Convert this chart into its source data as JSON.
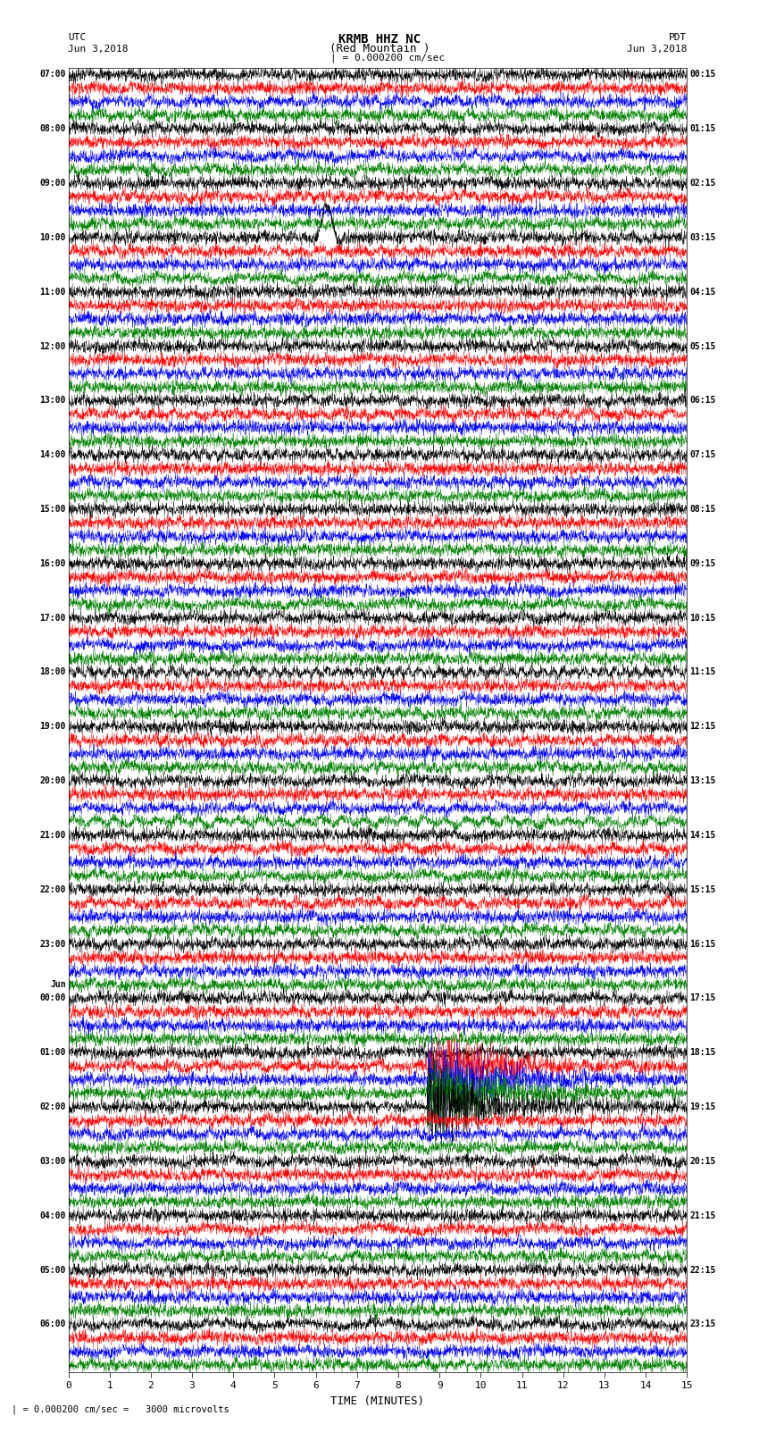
{
  "title_line1": "KRMB HHZ NC",
  "title_line2": "(Red Mountain )",
  "scale_label": "| = 0.000200 cm/sec",
  "bottom_annotation": "| = 0.000200 cm/sec =   3000 microvolts",
  "left_header1": "UTC",
  "left_header2": "Jun 3,2018",
  "right_header1": "PDT",
  "right_header2": "Jun 3,2018",
  "xlabel": "TIME (MINUTES)",
  "x_ticks": [
    0,
    1,
    2,
    3,
    4,
    5,
    6,
    7,
    8,
    9,
    10,
    11,
    12,
    13,
    14,
    15
  ],
  "time_minutes": 15,
  "trace_colors": [
    "black",
    "red",
    "blue",
    "green"
  ],
  "background_color": "white",
  "left_labels": [
    [
      "07:00",
      0
    ],
    [
      "08:00",
      4
    ],
    [
      "09:00",
      8
    ],
    [
      "10:00",
      12
    ],
    [
      "11:00",
      16
    ],
    [
      "12:00",
      20
    ],
    [
      "13:00",
      24
    ],
    [
      "14:00",
      28
    ],
    [
      "15:00",
      32
    ],
    [
      "16:00",
      36
    ],
    [
      "17:00",
      40
    ],
    [
      "18:00",
      44
    ],
    [
      "19:00",
      48
    ],
    [
      "20:00",
      52
    ],
    [
      "21:00",
      56
    ],
    [
      "22:00",
      60
    ],
    [
      "23:00",
      64
    ],
    [
      "Jun",
      67
    ],
    [
      "00:00",
      68
    ],
    [
      "01:00",
      72
    ],
    [
      "02:00",
      76
    ],
    [
      "03:00",
      80
    ],
    [
      "04:00",
      84
    ],
    [
      "05:00",
      88
    ],
    [
      "06:00",
      92
    ]
  ],
  "right_labels": [
    [
      "00:15",
      0
    ],
    [
      "01:15",
      4
    ],
    [
      "02:15",
      8
    ],
    [
      "03:15",
      12
    ],
    [
      "04:15",
      16
    ],
    [
      "05:15",
      20
    ],
    [
      "06:15",
      24
    ],
    [
      "07:15",
      28
    ],
    [
      "08:15",
      32
    ],
    [
      "09:15",
      36
    ],
    [
      "10:15",
      40
    ],
    [
      "11:15",
      44
    ],
    [
      "12:15",
      48
    ],
    [
      "13:15",
      52
    ],
    [
      "14:15",
      56
    ],
    [
      "15:15",
      60
    ],
    [
      "16:15",
      64
    ],
    [
      "17:15",
      68
    ],
    [
      "18:15",
      72
    ],
    [
      "19:15",
      76
    ],
    [
      "20:15",
      80
    ],
    [
      "21:15",
      84
    ],
    [
      "22:15",
      88
    ],
    [
      "23:15",
      92
    ]
  ],
  "n_rows": 96,
  "figsize": [
    8.5,
    16.13
  ],
  "dpi": 100
}
